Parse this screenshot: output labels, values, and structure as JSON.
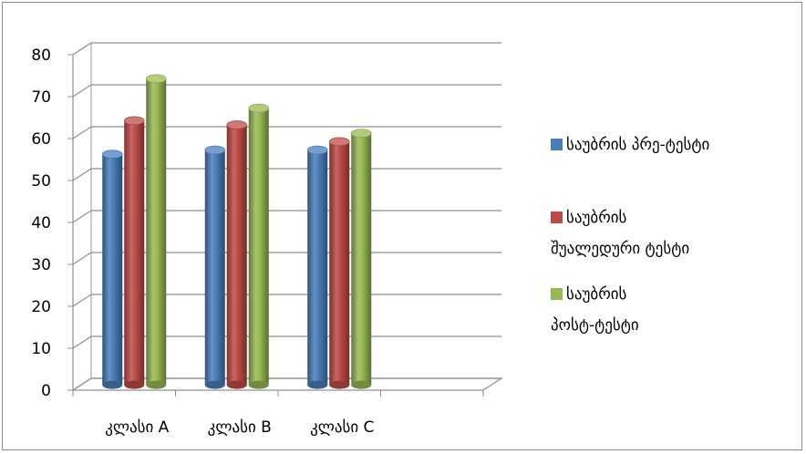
{
  "chart_data": {
    "type": "bar",
    "categories": [
      "კლასი A",
      "კლასი B",
      "კლასი C"
    ],
    "series": [
      {
        "name": "საუბრის პრე-ტესტი",
        "values": [
          55,
          56,
          56
        ],
        "color": "#4a7ebb"
      },
      {
        "name": "საუბრის შუალედური ტესტი",
        "values": [
          63,
          62,
          58
        ],
        "color": "#be4b48"
      },
      {
        "name": "საუბრის პოსტ-ტესტი",
        "values": [
          73,
          66,
          60
        ],
        "color": "#98b954"
      }
    ],
    "yticks": [
      0,
      10,
      20,
      30,
      40,
      50,
      60,
      70,
      80
    ],
    "ylim": [
      0,
      80
    ],
    "grid": true,
    "legend_position": "right",
    "style": "3d-cylinder"
  }
}
